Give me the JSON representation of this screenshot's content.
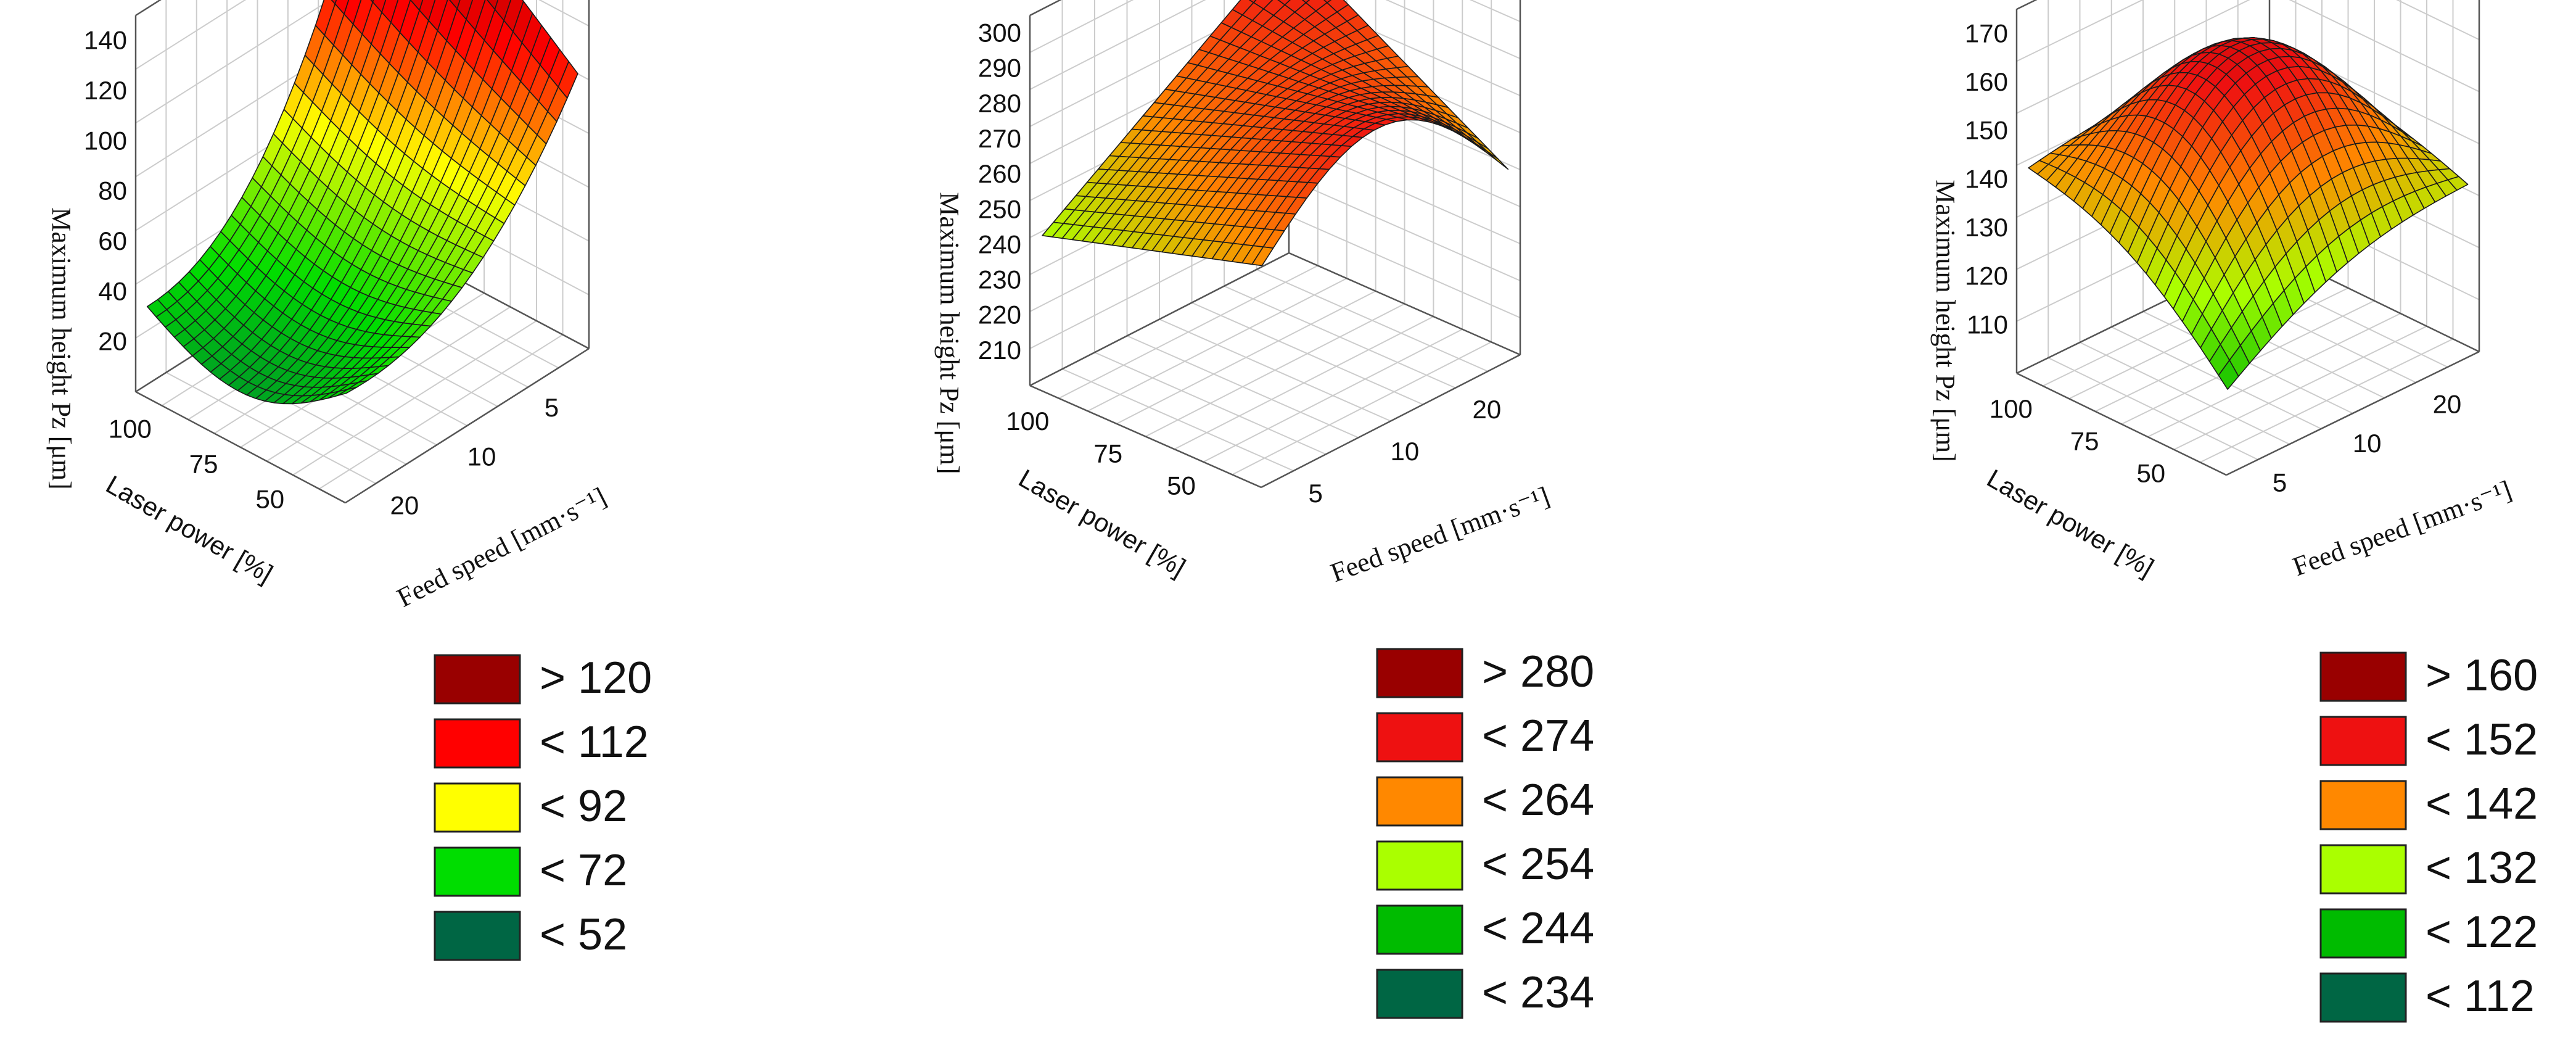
{
  "chart_data": [
    {
      "type": "surface3d",
      "zlabel": "Maximum height Pz  [μm]",
      "xlabel": "Laser power [%]",
      "ylabel": "Feed speed [mm·s⁻¹]",
      "x_ticks": [
        "100",
        "75",
        "50"
      ],
      "y_ticks": [
        "20",
        "10",
        "5"
      ],
      "z_ticks": [
        "20",
        "40",
        "60",
        "80",
        "100",
        "120",
        "140"
      ],
      "xlim": [
        40,
        105
      ],
      "ylim": [
        3,
        22
      ],
      "zlim": [
        10,
        150
      ],
      "legend": [
        {
          "label": "> 120",
          "color": "#990000"
        },
        {
          "label": "< 112",
          "color": "#ff0000"
        },
        {
          "label": "< 92",
          "color": "#ffff00"
        },
        {
          "label": "< 72",
          "color": "#00dd00"
        },
        {
          "label": "< 52",
          "color": "#006644"
        }
      ]
    },
    {
      "type": "surface3d",
      "zlabel": "Maximum height Pz  [μm]",
      "xlabel": "Laser power [%]",
      "ylabel": "Feed speed [mm·s⁻¹]",
      "x_ticks": [
        "100",
        "75",
        "50"
      ],
      "y_ticks": [
        "5",
        "10",
        "20"
      ],
      "z_ticks": [
        "210",
        "220",
        "230",
        "240",
        "250",
        "260",
        "270",
        "280",
        "290",
        "300"
      ],
      "xlim": [
        40,
        105
      ],
      "ylim": [
        3,
        22
      ],
      "zlim": [
        205,
        300
      ],
      "legend": [
        {
          "label": "> 280",
          "color": "#990000"
        },
        {
          "label": "< 274",
          "color": "#ee1111"
        },
        {
          "label": "< 264",
          "color": "#ff8800"
        },
        {
          "label": "< 254",
          "color": "#aaff00"
        },
        {
          "label": "< 244",
          "color": "#00bb00"
        },
        {
          "label": "< 234",
          "color": "#006644"
        }
      ]
    },
    {
      "type": "surface3d",
      "zlabel": "Maximum height Pz  [μm]",
      "xlabel": "Laser power [%]",
      "ylabel": "Feed speed [mm·s⁻¹]",
      "x_ticks": [
        "100",
        "75",
        "50"
      ],
      "y_ticks": [
        "5",
        "10",
        "20"
      ],
      "z_ticks": [
        "110",
        "120",
        "130",
        "140",
        "150",
        "160",
        "170"
      ],
      "xlim": [
        40,
        105
      ],
      "ylim": [
        3,
        22
      ],
      "zlim": [
        105,
        170
      ],
      "legend": [
        {
          "label": "> 160",
          "color": "#990000"
        },
        {
          "label": "< 152",
          "color": "#ee1111"
        },
        {
          "label": "< 142",
          "color": "#ff8800"
        },
        {
          "label": "< 132",
          "color": "#aaff00"
        },
        {
          "label": "< 122",
          "color": "#00bb00"
        },
        {
          "label": "< 112",
          "color": "#006644"
        }
      ]
    }
  ]
}
